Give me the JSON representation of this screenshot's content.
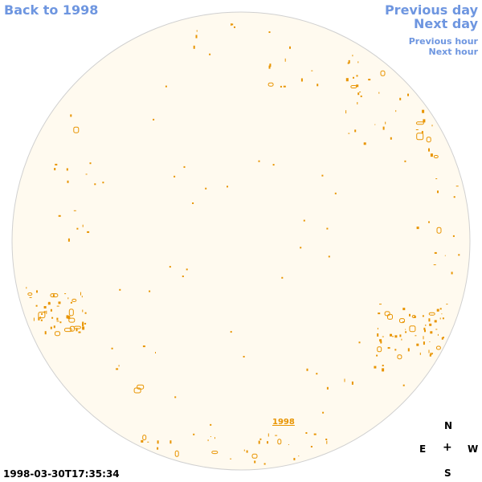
{
  "nav": {
    "back": "Back to 1998",
    "previous_day": "Previous day",
    "next_day": "Next day",
    "previous_hour": "Previous hour",
    "next_hour": "Next hour"
  },
  "sun_label": "1998",
  "timestamp": "1998-03-30T17:35:34",
  "compass": {
    "north": "N",
    "east": "E",
    "west": "W",
    "south": "S",
    "center": "+"
  },
  "colors": {
    "disk_fill": "#fffaef",
    "disk_stroke": "#d0d0d0",
    "feature": "#e89400",
    "link": "#6e96e0"
  }
}
